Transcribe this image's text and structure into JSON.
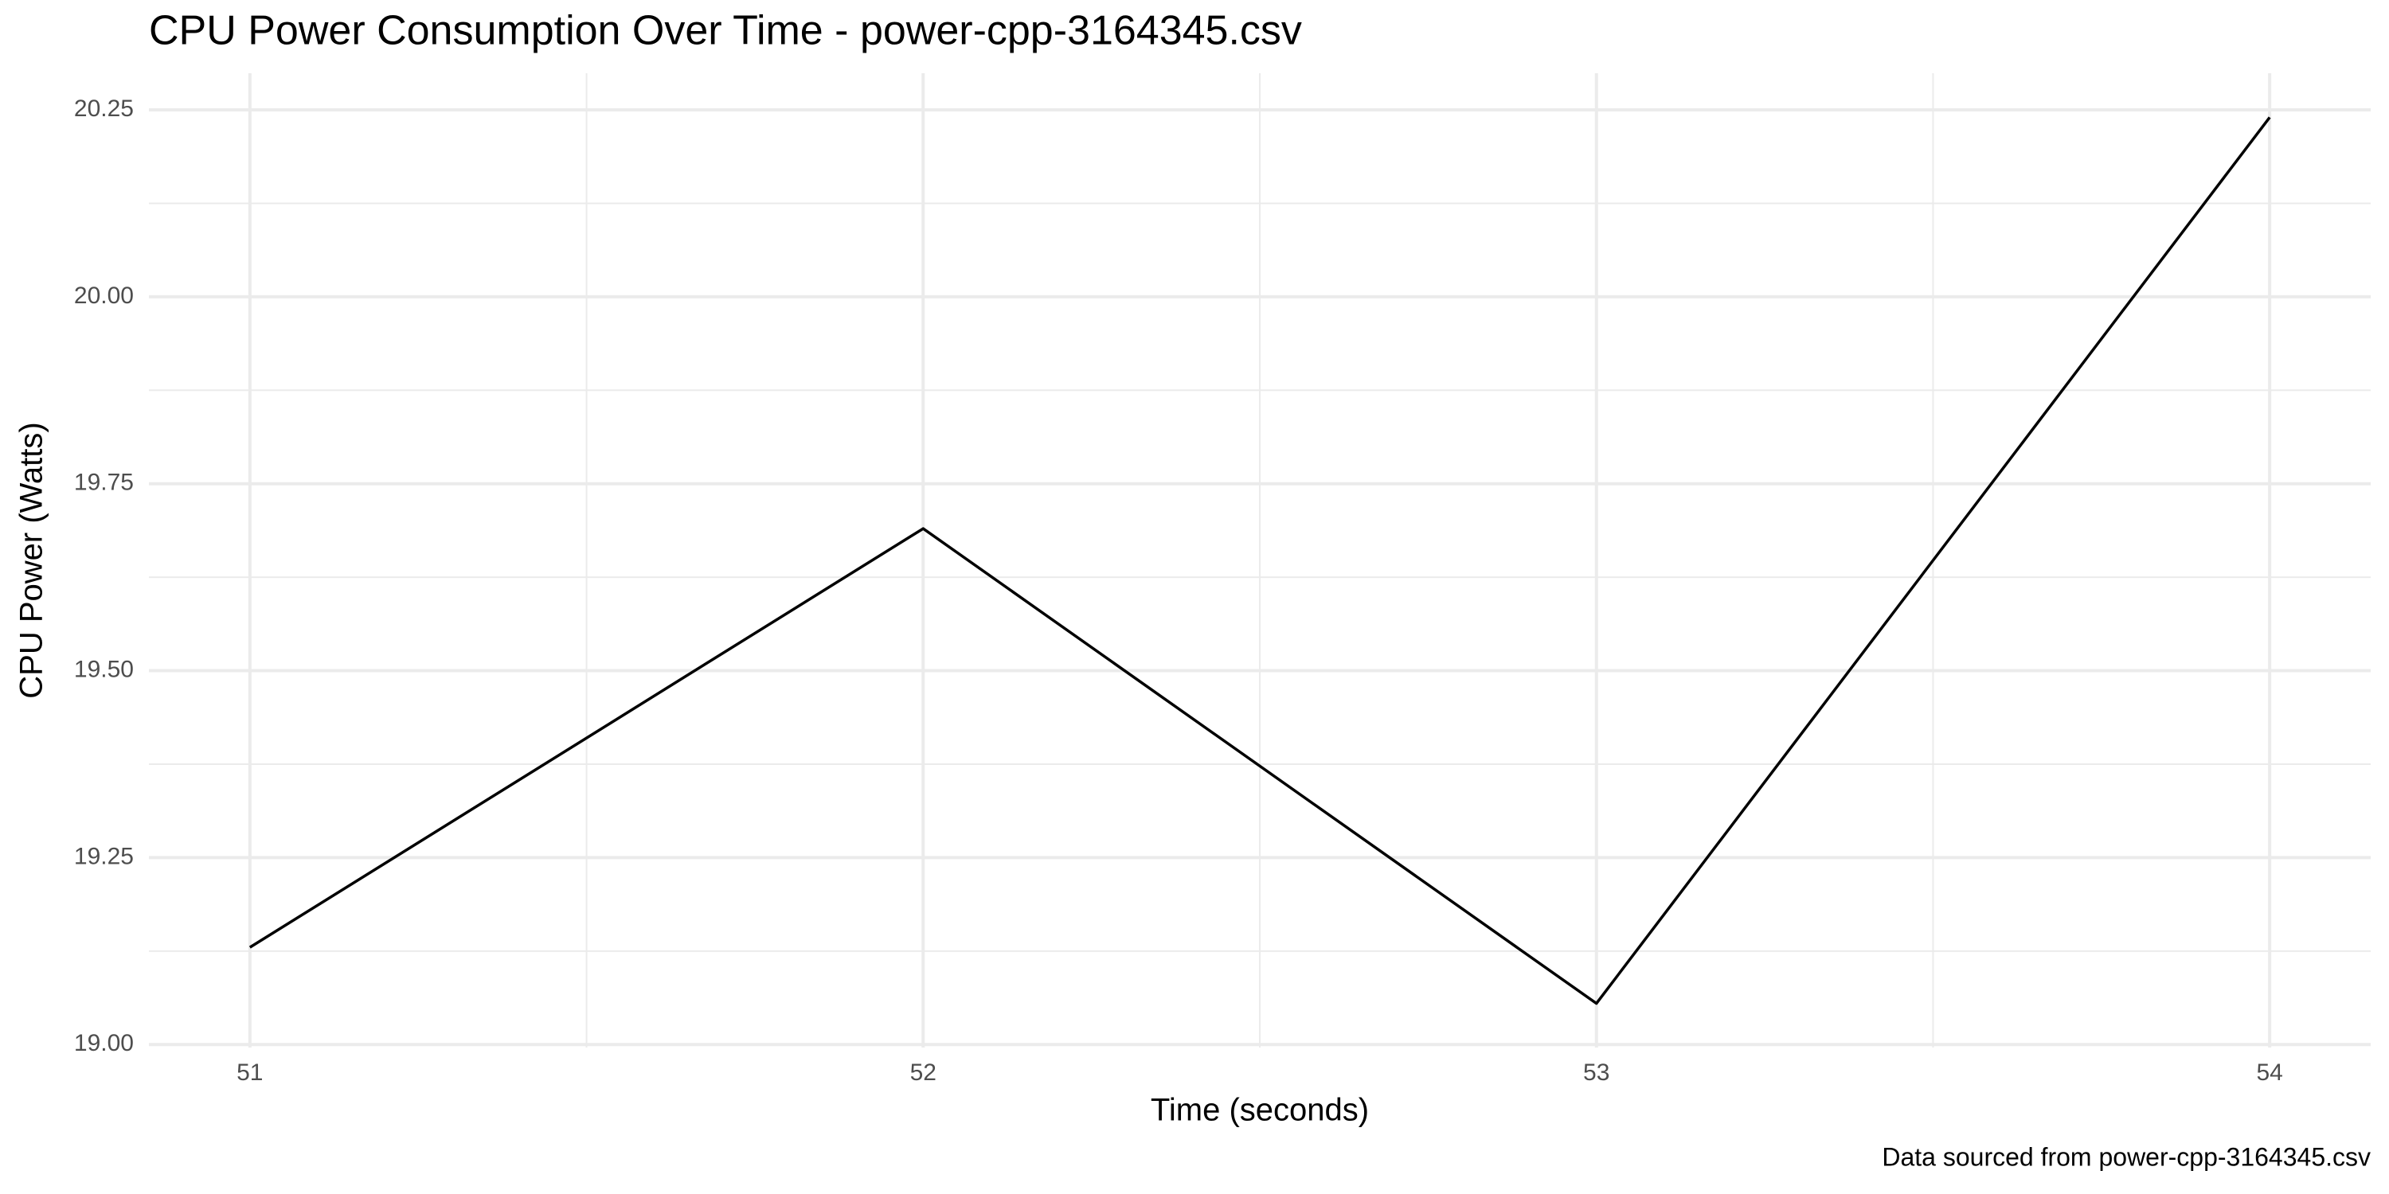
{
  "chart_data": {
    "type": "line",
    "title": "CPU Power Consumption Over Time - power-cpp-3164345.csv",
    "x_label": "Time (seconds)",
    "y_label": "CPU Power (Watts)",
    "caption": "Data sourced from power-cpp-3164345.csv",
    "x": [
      51,
      52,
      53,
      54
    ],
    "series": [
      {
        "name": "CPU Power",
        "color": "#000000",
        "values": [
          19.13,
          19.69,
          19.055,
          20.24
        ]
      }
    ],
    "xlim": [
      50.85,
      54.15
    ],
    "xticks": [
      51,
      52,
      53,
      54
    ],
    "ylim": [
      18.996,
      20.299
    ],
    "yticks": [
      {
        "value": 19.0,
        "label": "19.00"
      },
      19.25,
      {
        "value": 19.5,
        "label": "19.50"
      },
      19.75,
      {
        "value": 20.0,
        "label": "20.00"
      },
      20.25
    ],
    "grid": true
  }
}
